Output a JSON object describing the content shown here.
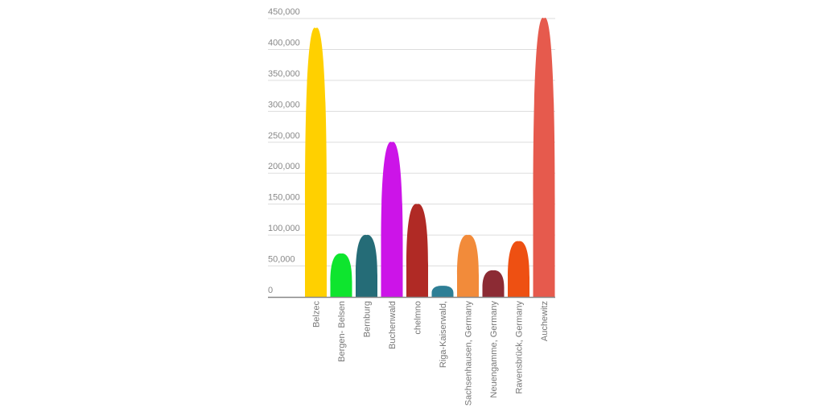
{
  "chart_data": {
    "type": "bar",
    "bar_shape": "rounded-peak",
    "categories": [
      "Belzec",
      "Bergen- Belsen",
      "Bernburg",
      "Buchenwald",
      "chelmno",
      "Riga-Kaiserwald,",
      "Sachsenhausen, Germany",
      "Neuengamme, Germany",
      "Ravensbrück, Germany",
      "Auchewitz"
    ],
    "values": [
      434000,
      70000,
      100000,
      250000,
      150000,
      18000,
      100000,
      43000,
      90000,
      450000
    ],
    "colors": [
      "#FFD000",
      "#0EE52E",
      "#256C77",
      "#CC14E8",
      "#B02A25",
      "#2E7F96",
      "#F28B3A",
      "#8C2B34",
      "#EE5012",
      "#E65A4D"
    ],
    "ylim": [
      0,
      450000
    ],
    "y_ticks": [
      0,
      50000,
      100000,
      150000,
      200000,
      250000,
      300000,
      350000,
      400000,
      450000
    ],
    "y_tick_labels": [
      "0",
      "50,000",
      "100,000",
      "150,000",
      "200,000",
      "250,000",
      "300,000",
      "350,000",
      "400,000",
      "450,000"
    ],
    "grid": true,
    "title": "",
    "xlabel": "",
    "ylabel": ""
  }
}
